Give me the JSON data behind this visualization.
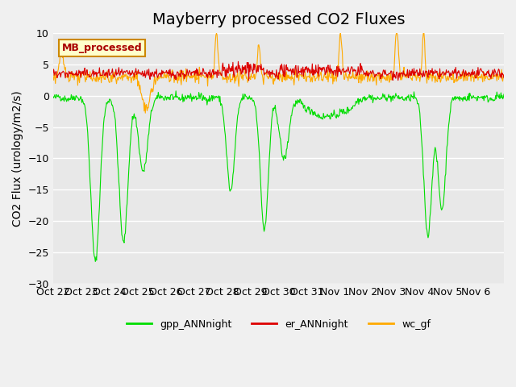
{
  "title": "Mayberry processed CO2 Fluxes",
  "ylabel": "CO2 Flux (urology/m2/s)",
  "ylim": [
    -30,
    10
  ],
  "yticks": [
    -30,
    -25,
    -20,
    -15,
    -10,
    -5,
    0,
    5,
    10
  ],
  "xtick_labels": [
    "Oct 22",
    "Oct 23",
    "Oct 24",
    "Oct 25",
    "Oct 26",
    "Oct 27",
    "Oct 28",
    "Oct 29",
    "Oct 30",
    "Oct 31",
    "Nov 1",
    "Nov 2",
    "Nov 3",
    "Nov 4",
    "Nov 5",
    "Nov 6"
  ],
  "xtick_positions": [
    0,
    1,
    2,
    3,
    4,
    5,
    6,
    7,
    8,
    9,
    10,
    11,
    12,
    13,
    14,
    15
  ],
  "legend_label": "MB_processed",
  "legend_box_color": "#ffffcc",
  "legend_box_edge": "#cc8800",
  "gpp_color": "#00dd00",
  "er_color": "#dd0000",
  "wc_color": "#ffaa00",
  "background_color": "#e8e8e8",
  "grid_color": "#ffffff",
  "title_fontsize": 14,
  "label_fontsize": 10,
  "tick_fontsize": 9
}
